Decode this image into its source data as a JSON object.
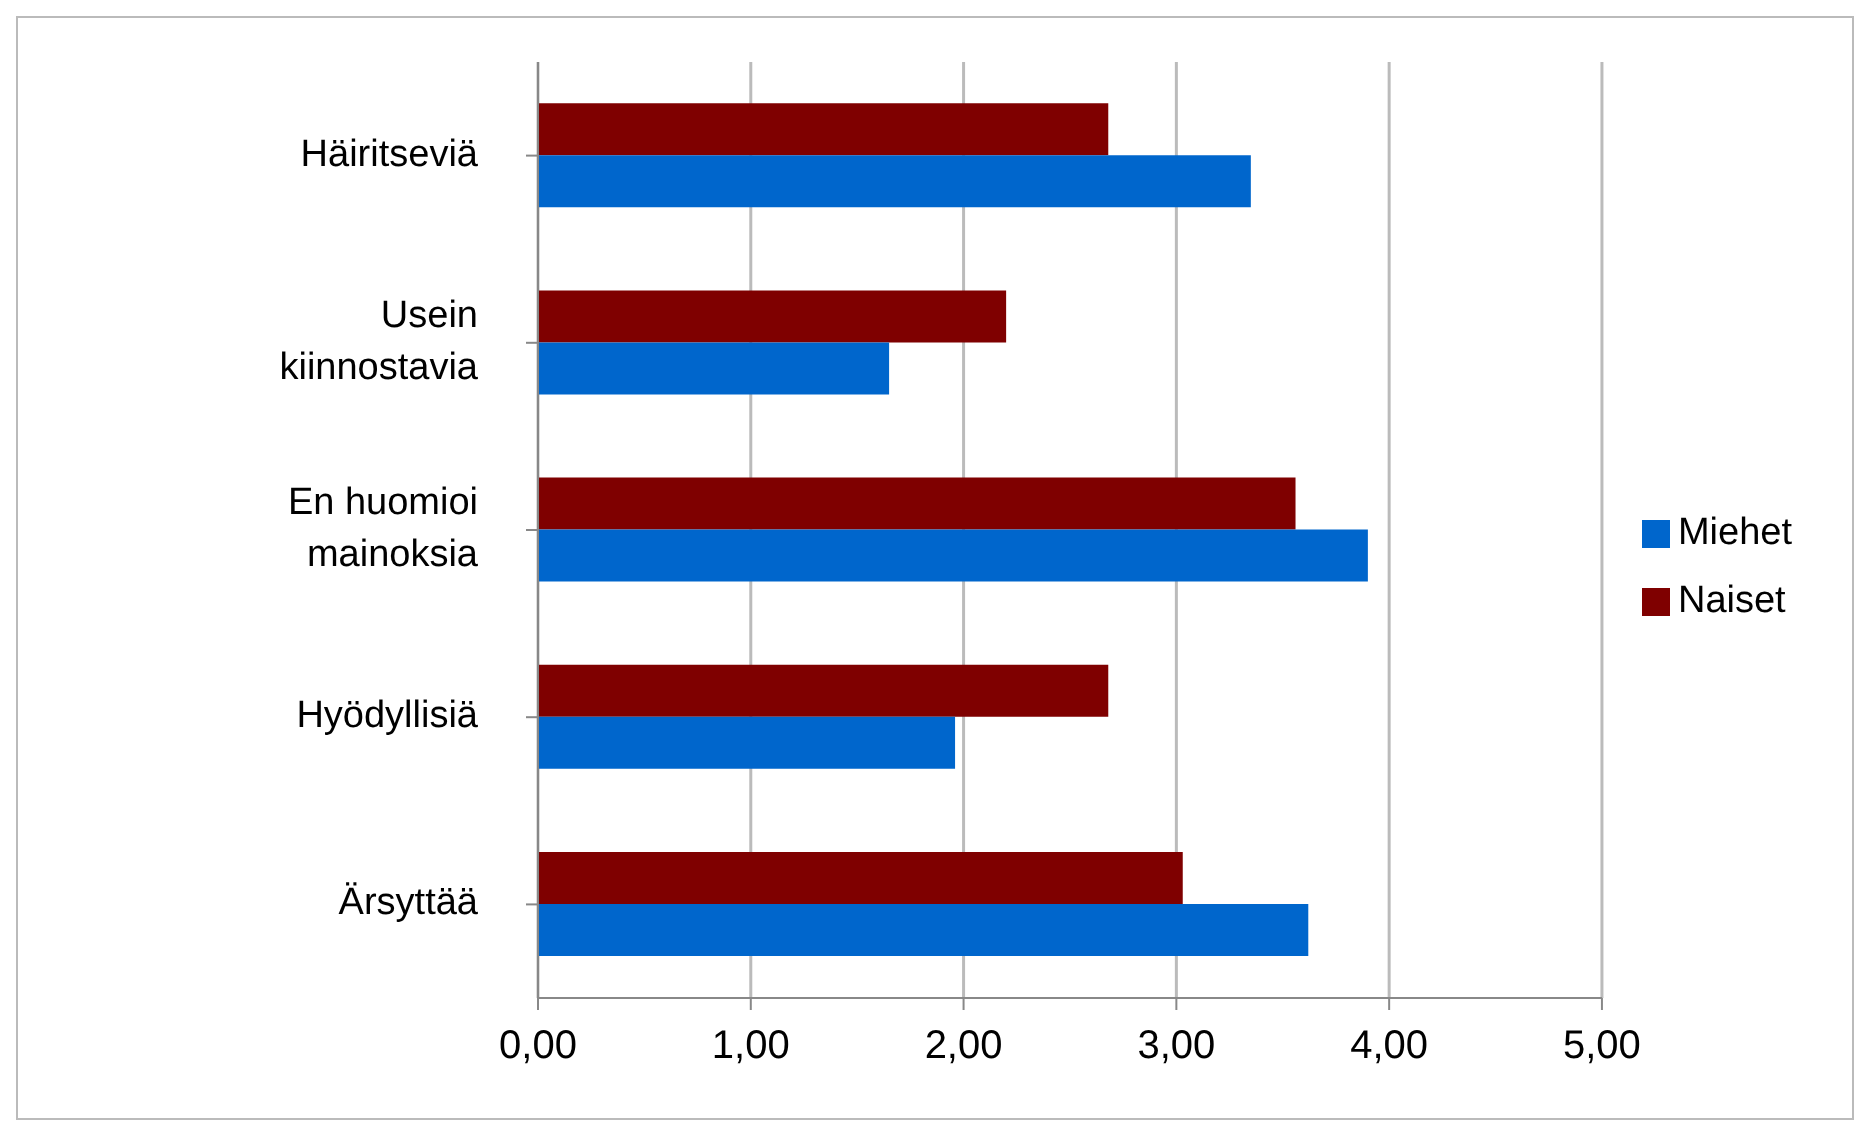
{
  "chart_data": {
    "type": "bar",
    "orientation": "horizontal",
    "categories": [
      "Häiritseviä",
      "Usein kiinnostavia",
      "En huomioi mainoksia",
      "Hyödyllisiä",
      "Ärsyttää"
    ],
    "series": [
      {
        "name": "Naiset",
        "color": "#7f0000",
        "values": [
          2.68,
          2.2,
          3.56,
          2.68,
          3.03
        ]
      },
      {
        "name": "Miehet",
        "color": "#0066cc",
        "values": [
          3.35,
          1.65,
          3.9,
          1.96,
          3.62
        ]
      }
    ],
    "xlim": [
      0,
      5
    ],
    "xticks": [
      {
        "value": 0,
        "label": "0,00"
      },
      {
        "value": 1,
        "label": "1,00"
      },
      {
        "value": 2,
        "label": "2,00"
      },
      {
        "value": 3,
        "label": "3,00"
      },
      {
        "value": 4,
        "label": "4,00"
      },
      {
        "value": 5,
        "label": "5,00"
      }
    ],
    "grid": "x",
    "legend": "right"
  }
}
